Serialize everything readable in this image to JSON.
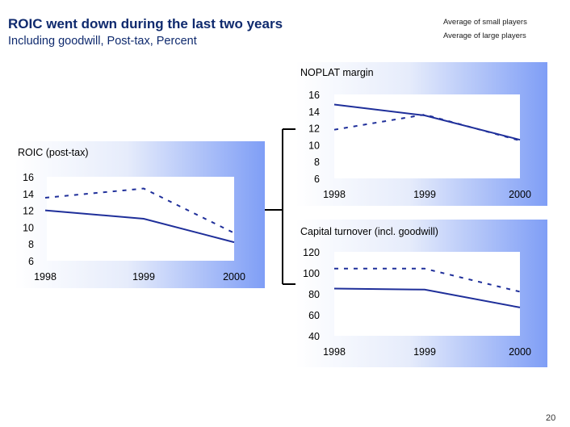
{
  "header": {
    "title": "ROIC went down during the last two years",
    "subtitle": "Including goodwill, Post-tax, Percent"
  },
  "legend": {
    "small": "Average of small players",
    "large": "Average of large players"
  },
  "colors": {
    "line": "#1f2f9a",
    "panel_end": "#7f9ef6"
  },
  "page_number": "20",
  "chart_data": [
    {
      "type": "line",
      "title": "ROIC (post-tax)",
      "categories": [
        "1998",
        "1999",
        "2000"
      ],
      "ylim": [
        6,
        16
      ],
      "yticks": [
        "16",
        "14",
        "12",
        "10",
        "8",
        "6"
      ],
      "series": [
        {
          "name": "Average of small players",
          "style": "dashed",
          "values": [
            13.5,
            14.6,
            9.3
          ]
        },
        {
          "name": "Average of large players",
          "style": "solid",
          "values": [
            12.0,
            11.0,
            8.2
          ]
        }
      ]
    },
    {
      "type": "line",
      "title": "NOPLAT margin",
      "categories": [
        "1998",
        "1999",
        "2000"
      ],
      "ylim": [
        6,
        16
      ],
      "yticks": [
        "16",
        "14",
        "12",
        "10",
        "8",
        "6"
      ],
      "series": [
        {
          "name": "Average of small players",
          "style": "dashed",
          "values": [
            11.8,
            13.6,
            10.5
          ]
        },
        {
          "name": "Average of large players",
          "style": "solid",
          "values": [
            14.8,
            13.5,
            10.6
          ]
        }
      ]
    },
    {
      "type": "line",
      "title": "Capital turnover (incl. goodwill)",
      "categories": [
        "1998",
        "1999",
        "2000"
      ],
      "ylim": [
        40,
        120
      ],
      "yticks": [
        "120",
        "100",
        "80",
        "60",
        "40"
      ],
      "series": [
        {
          "name": "Average of small players",
          "style": "dashed",
          "values": [
            104,
            104,
            82
          ]
        },
        {
          "name": "Average of large players",
          "style": "solid",
          "values": [
            85,
            84,
            67
          ]
        }
      ]
    }
  ]
}
